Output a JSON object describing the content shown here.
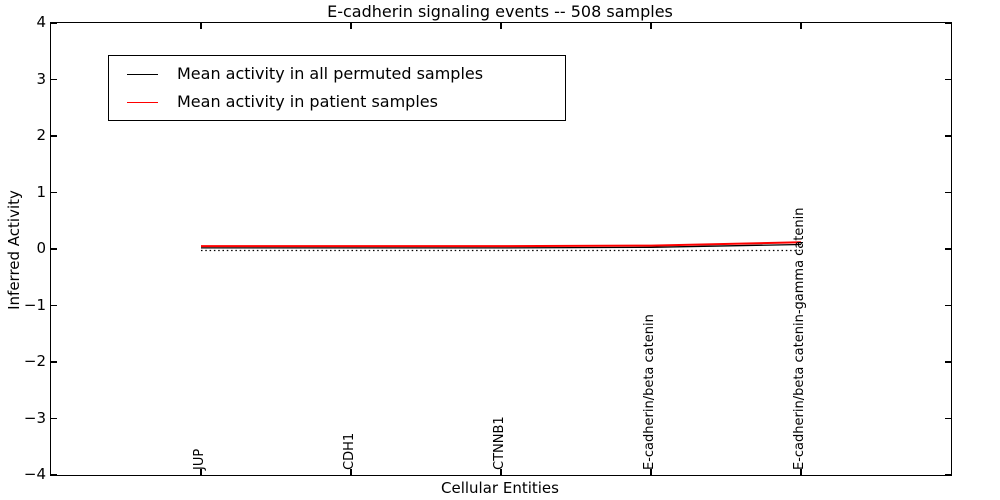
{
  "title": "E-cadherin signaling events -- 508 samples",
  "axes": {
    "ylabel": "Inferred Activity",
    "xlabel": "Cellular Entities",
    "ytick_values": [
      4,
      3,
      2,
      1,
      0,
      -1,
      -2,
      -3,
      -4
    ],
    "ytick_labels": [
      "4",
      "3",
      "2",
      "1",
      "0",
      "−1",
      "−2",
      "−3",
      "−4"
    ]
  },
  "colors": {
    "axis": "#000000",
    "permuted_line": "#000000",
    "patient_line": "#ff0000",
    "zero_line": "#000000",
    "background": "#ffffff"
  },
  "legend": {
    "items": [
      {
        "label": "Mean activity in all permuted samples",
        "color": "#000000"
      },
      {
        "label": "Mean activity in patient samples",
        "color": "#ff0000"
      }
    ]
  },
  "chart_data": {
    "type": "line",
    "title": "E-cadherin signaling events -- 508 samples",
    "xlabel": "Cellular Entities",
    "ylabel": "Inferred Activity",
    "categories": [
      "JUP",
      "CDH1",
      "CTNNB1",
      "E-cadherin/beta catenin",
      "E-cadherin/beta catenin-gamma catenin"
    ],
    "series": [
      {
        "name": "Mean activity in all permuted samples",
        "color": "#000000",
        "width": 1.3,
        "values": [
          0.02,
          0.02,
          0.02,
          0.03,
          0.08
        ]
      },
      {
        "name": "Mean activity in patient samples",
        "color": "#ff0000",
        "width": 2.0,
        "values": [
          0.05,
          0.05,
          0.05,
          0.06,
          0.12
        ]
      }
    ],
    "zero_line": {
      "value": 0,
      "style": "dotted",
      "color": "#000000"
    },
    "ylim": [
      -4,
      4
    ],
    "xlim": [
      -1,
      5
    ],
    "grid": false,
    "legend_position": "upper left",
    "xtick_label_rotation": 90,
    "xtick_labels_inside_axes": true
  }
}
